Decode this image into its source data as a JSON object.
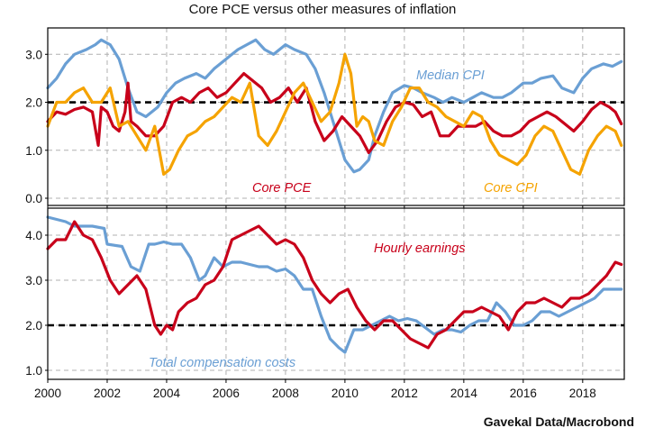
{
  "chart_title": "Core PCE versus other measures of inflation",
  "source_note": "Gavekal Data/Macrobond",
  "colors": {
    "median_cpi": "#6a9fd4",
    "core_pce": "#c8001a",
    "core_cpi": "#f5a300",
    "total_comp": "#6a9fd4",
    "hourly": "#c8001a",
    "reference": "#000000"
  },
  "chart_data": [
    {
      "type": "line",
      "title": "Core PCE versus other measures of inflation",
      "x_ticks": [
        "2000",
        "2002",
        "2004",
        "2006",
        "2008",
        "2010",
        "2012",
        "2014",
        "2016",
        "2018"
      ],
      "y_ticks": [
        "0.0",
        "1.0",
        "2.0",
        "3.0"
      ],
      "ylim": [
        -0.15,
        3.55
      ],
      "xlim": [
        2000.0,
        2019.4
      ],
      "grid": true,
      "reference_line": 2.0,
      "annotations": [
        {
          "text": "Median CPI",
          "series": "Median CPI"
        },
        {
          "text": "Core PCE",
          "series": "Core PCE"
        },
        {
          "text": "Core CPI",
          "series": "Core CPI"
        }
      ],
      "series": [
        {
          "name": "Median CPI",
          "color": "#6a9fd4",
          "x": [
            2000.0,
            2000.3,
            2000.6,
            2000.9,
            2001.3,
            2001.6,
            2001.8,
            2002.1,
            2002.4,
            2002.7,
            2003.0,
            2003.3,
            2003.7,
            2004.0,
            2004.3,
            2004.6,
            2005.0,
            2005.3,
            2005.6,
            2006.0,
            2006.4,
            2006.7,
            2007.0,
            2007.3,
            2007.6,
            2008.0,
            2008.3,
            2008.7,
            2009.0,
            2009.3,
            2009.5,
            2009.8,
            2010.0,
            2010.3,
            2010.5,
            2010.8,
            2011.0,
            2011.3,
            2011.6,
            2012.0,
            2012.3,
            2012.6,
            2013.0,
            2013.3,
            2013.6,
            2014.0,
            2014.3,
            2014.6,
            2015.0,
            2015.3,
            2015.6,
            2016.0,
            2016.3,
            2016.6,
            2017.0,
            2017.3,
            2017.7,
            2018.0,
            2018.3,
            2018.7,
            2019.0,
            2019.3
          ],
          "y": [
            2.3,
            2.5,
            2.8,
            3.0,
            3.1,
            3.2,
            3.3,
            3.2,
            2.9,
            2.3,
            1.8,
            1.7,
            1.9,
            2.2,
            2.4,
            2.5,
            2.6,
            2.5,
            2.7,
            2.9,
            3.1,
            3.2,
            3.3,
            3.1,
            3.0,
            3.2,
            3.1,
            3.0,
            2.7,
            2.2,
            1.8,
            1.2,
            0.8,
            0.55,
            0.6,
            0.8,
            1.3,
            1.8,
            2.2,
            2.35,
            2.3,
            2.2,
            2.1,
            2.0,
            2.1,
            2.0,
            2.1,
            2.2,
            2.1,
            2.1,
            2.2,
            2.4,
            2.4,
            2.5,
            2.55,
            2.3,
            2.2,
            2.5,
            2.7,
            2.8,
            2.75,
            2.85
          ]
        },
        {
          "name": "Core PCE",
          "color": "#c8001a",
          "x": [
            2000.0,
            2000.3,
            2000.6,
            2000.9,
            2001.2,
            2001.5,
            2001.7,
            2001.8,
            2002.0,
            2002.2,
            2002.4,
            2002.6,
            2002.7,
            2002.8,
            2003.0,
            2003.3,
            2003.6,
            2003.9,
            2004.2,
            2004.5,
            2004.8,
            2005.1,
            2005.4,
            2005.7,
            2006.0,
            2006.3,
            2006.6,
            2006.9,
            2007.2,
            2007.5,
            2007.8,
            2008.1,
            2008.4,
            2008.7,
            2009.0,
            2009.3,
            2009.6,
            2009.9,
            2010.2,
            2010.5,
            2010.8,
            2011.1,
            2011.4,
            2011.7,
            2012.0,
            2012.3,
            2012.6,
            2012.9,
            2013.2,
            2013.5,
            2013.8,
            2014.1,
            2014.4,
            2014.7,
            2015.0,
            2015.3,
            2015.6,
            2015.9,
            2016.2,
            2016.5,
            2016.8,
            2017.1,
            2017.4,
            2017.7,
            2018.0,
            2018.3,
            2018.6,
            2018.9,
            2019.1,
            2019.3
          ],
          "y": [
            1.6,
            1.8,
            1.75,
            1.85,
            1.9,
            1.8,
            1.1,
            1.9,
            1.8,
            1.5,
            1.4,
            1.8,
            2.4,
            1.6,
            1.5,
            1.3,
            1.3,
            1.5,
            2.0,
            2.1,
            2.0,
            2.2,
            2.3,
            2.1,
            2.2,
            2.4,
            2.6,
            2.45,
            2.3,
            2.0,
            2.1,
            2.3,
            2.0,
            2.3,
            1.6,
            1.2,
            1.4,
            1.7,
            1.5,
            1.3,
            0.95,
            1.2,
            1.6,
            1.9,
            2.0,
            1.95,
            1.7,
            1.8,
            1.3,
            1.3,
            1.5,
            1.5,
            1.5,
            1.6,
            1.4,
            1.3,
            1.3,
            1.4,
            1.6,
            1.7,
            1.8,
            1.7,
            1.55,
            1.4,
            1.6,
            1.85,
            2.0,
            1.9,
            1.8,
            1.55
          ]
        },
        {
          "name": "Core CPI",
          "color": "#f5a300",
          "x": [
            2000.0,
            2000.3,
            2000.6,
            2000.9,
            2001.2,
            2001.5,
            2001.8,
            2002.1,
            2002.4,
            2002.7,
            2003.0,
            2003.3,
            2003.6,
            2003.9,
            2004.1,
            2004.4,
            2004.7,
            2005.0,
            2005.3,
            2005.6,
            2005.9,
            2006.2,
            2006.5,
            2006.8,
            2007.1,
            2007.4,
            2007.7,
            2008.0,
            2008.3,
            2008.6,
            2008.9,
            2009.2,
            2009.5,
            2009.8,
            2010.0,
            2010.2,
            2010.4,
            2010.6,
            2010.8,
            2011.0,
            2011.3,
            2011.6,
            2011.9,
            2012.2,
            2012.5,
            2012.8,
            2013.1,
            2013.4,
            2013.7,
            2014.0,
            2014.3,
            2014.6,
            2014.9,
            2015.2,
            2015.5,
            2015.8,
            2016.1,
            2016.4,
            2016.7,
            2017.0,
            2017.3,
            2017.6,
            2017.9,
            2018.2,
            2018.5,
            2018.8,
            2019.1,
            2019.3
          ],
          "y": [
            1.5,
            2.0,
            2.0,
            2.2,
            2.3,
            2.0,
            2.0,
            2.3,
            1.5,
            1.6,
            1.3,
            1.0,
            1.5,
            0.5,
            0.6,
            1.0,
            1.3,
            1.4,
            1.6,
            1.7,
            1.9,
            2.1,
            2.0,
            2.4,
            1.3,
            1.1,
            1.4,
            1.8,
            2.2,
            2.4,
            2.0,
            1.6,
            1.8,
            2.4,
            3.0,
            2.6,
            1.5,
            1.7,
            1.6,
            1.2,
            1.1,
            1.6,
            1.9,
            2.3,
            2.3,
            2.0,
            1.9,
            1.7,
            1.6,
            1.5,
            1.8,
            1.7,
            1.2,
            0.9,
            0.8,
            0.7,
            0.9,
            1.3,
            1.5,
            1.4,
            1.0,
            0.6,
            0.5,
            1.0,
            1.3,
            1.5,
            1.4,
            1.1
          ]
        }
      ]
    },
    {
      "type": "line",
      "x_ticks": [
        "2000",
        "2002",
        "2004",
        "2006",
        "2008",
        "2010",
        "2012",
        "2014",
        "2016",
        "2018"
      ],
      "y_ticks": [
        "1.0",
        "2.0",
        "3.0",
        "4.0"
      ],
      "ylim": [
        0.8,
        4.6
      ],
      "xlim": [
        2000.0,
        2019.4
      ],
      "grid": true,
      "reference_line": 2.0,
      "annotations": [
        {
          "text": "Hourly earnings",
          "series": "Hourly earnings"
        },
        {
          "text": "Total compensation costs",
          "series": "Total compensation costs"
        }
      ],
      "series": [
        {
          "name": "Total compensation costs",
          "color": "#6a9fd4",
          "x": [
            2000.0,
            2000.3,
            2000.6,
            2000.9,
            2001.2,
            2001.5,
            2001.9,
            2002.0,
            2002.5,
            2002.8,
            2003.1,
            2003.4,
            2003.6,
            2003.9,
            2004.2,
            2004.5,
            2004.8,
            2005.1,
            2005.3,
            2005.6,
            2005.9,
            2006.2,
            2006.5,
            2006.8,
            2007.1,
            2007.4,
            2007.7,
            2008.0,
            2008.3,
            2008.6,
            2008.9,
            2009.2,
            2009.5,
            2009.8,
            2010.0,
            2010.3,
            2010.6,
            2010.9,
            2011.2,
            2011.5,
            2011.8,
            2012.1,
            2012.4,
            2012.7,
            2013.0,
            2013.3,
            2013.6,
            2013.9,
            2014.2,
            2014.5,
            2014.8,
            2015.1,
            2015.4,
            2015.7,
            2016.0,
            2016.3,
            2016.6,
            2016.9,
            2017.2,
            2017.5,
            2017.8,
            2018.1,
            2018.4,
            2018.7,
            2019.0,
            2019.3
          ],
          "y": [
            4.4,
            4.35,
            4.3,
            4.2,
            4.2,
            4.2,
            4.15,
            3.8,
            3.75,
            3.3,
            3.2,
            3.8,
            3.8,
            3.85,
            3.8,
            3.8,
            3.5,
            3.0,
            3.1,
            3.5,
            3.3,
            3.4,
            3.4,
            3.35,
            3.3,
            3.3,
            3.2,
            3.25,
            3.1,
            2.8,
            2.8,
            2.2,
            1.7,
            1.5,
            1.4,
            1.9,
            1.9,
            2.0,
            2.1,
            2.2,
            2.1,
            2.15,
            2.1,
            1.95,
            1.8,
            1.9,
            1.9,
            1.85,
            2.0,
            2.1,
            2.1,
            2.5,
            2.3,
            2.0,
            2.0,
            2.1,
            2.3,
            2.3,
            2.2,
            2.3,
            2.4,
            2.5,
            2.6,
            2.8,
            2.8,
            2.8
          ]
        },
        {
          "name": "Hourly earnings",
          "color": "#c8001a",
          "x": [
            2000.0,
            2000.3,
            2000.6,
            2000.9,
            2001.2,
            2001.5,
            2001.8,
            2002.1,
            2002.4,
            2002.7,
            2003.0,
            2003.3,
            2003.6,
            2003.8,
            2004.0,
            2004.2,
            2004.4,
            2004.7,
            2005.0,
            2005.3,
            2005.6,
            2005.9,
            2006.2,
            2006.5,
            2006.8,
            2007.1,
            2007.4,
            2007.7,
            2008.0,
            2008.3,
            2008.6,
            2008.9,
            2009.2,
            2009.5,
            2009.8,
            2010.1,
            2010.4,
            2010.7,
            2011.0,
            2011.3,
            2011.6,
            2011.9,
            2012.2,
            2012.5,
            2012.8,
            2013.1,
            2013.4,
            2013.7,
            2014.0,
            2014.3,
            2014.6,
            2014.9,
            2015.2,
            2015.5,
            2015.8,
            2016.1,
            2016.4,
            2016.7,
            2017.0,
            2017.3,
            2017.6,
            2017.9,
            2018.2,
            2018.5,
            2018.8,
            2019.1,
            2019.3
          ],
          "y": [
            3.7,
            3.9,
            3.9,
            4.3,
            4.0,
            3.9,
            3.5,
            3.0,
            2.7,
            2.9,
            3.1,
            2.8,
            2.0,
            1.8,
            2.0,
            1.9,
            2.3,
            2.5,
            2.6,
            2.9,
            3.0,
            3.3,
            3.9,
            4.0,
            4.1,
            4.2,
            4.0,
            3.8,
            3.9,
            3.8,
            3.5,
            3.0,
            2.7,
            2.5,
            2.7,
            2.8,
            2.4,
            2.1,
            1.9,
            2.1,
            2.1,
            1.9,
            1.7,
            1.6,
            1.5,
            1.8,
            1.9,
            2.1,
            2.3,
            2.3,
            2.4,
            2.3,
            2.2,
            1.9,
            2.3,
            2.5,
            2.5,
            2.6,
            2.5,
            2.4,
            2.6,
            2.6,
            2.7,
            2.9,
            3.1,
            3.4,
            3.35
          ]
        }
      ]
    }
  ]
}
